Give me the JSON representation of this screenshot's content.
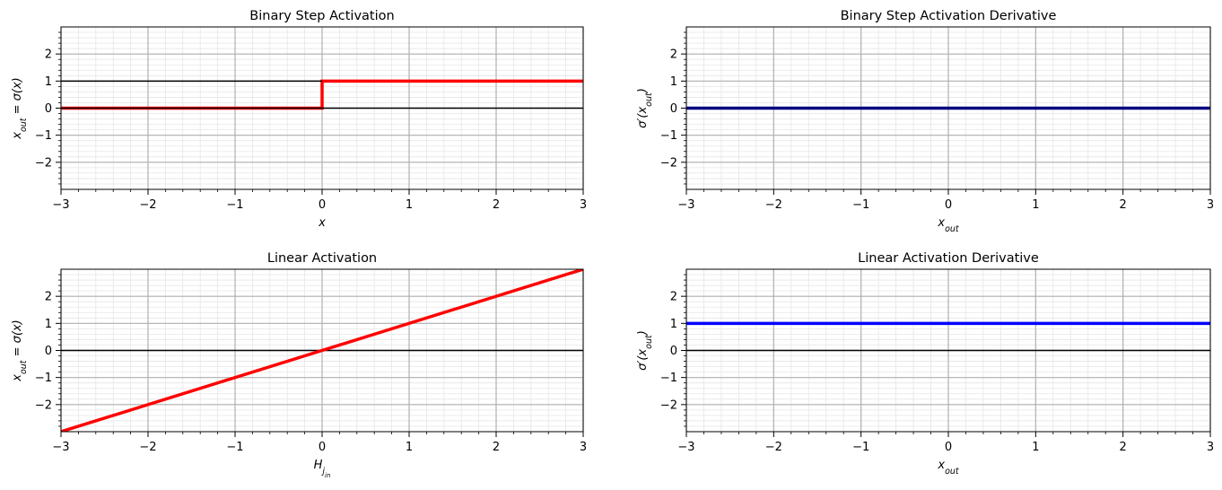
{
  "chart_data": [
    {
      "type": "line",
      "title": "Binary Step Activation",
      "xlabel": "x",
      "ylabel": "x_out = σ(x)",
      "xlim": [
        -3,
        3
      ],
      "ylim": [
        -3,
        3
      ],
      "xticks": [
        -3,
        -2,
        -1,
        0,
        1,
        2,
        3
      ],
      "yticks": [
        -2,
        -1,
        0,
        1,
        2
      ],
      "grid": true,
      "series": [
        {
          "x": [
            -3,
            0,
            0,
            3
          ],
          "y": [
            0,
            0,
            1,
            1
          ],
          "color": "#ff0000",
          "width": 3.5
        },
        {
          "x": [
            -3,
            3
          ],
          "y": [
            0,
            0
          ],
          "color": "#000000",
          "width": 1.5
        },
        {
          "x": [
            -3,
            0
          ],
          "y": [
            1,
            1
          ],
          "color": "#000000",
          "width": 1.5
        }
      ]
    },
    {
      "type": "line",
      "title": "Binary Step Activation Derivative",
      "xlabel": "x_out",
      "ylabel": "σ′(x_out)",
      "xlim": [
        -3,
        3
      ],
      "ylim": [
        -3,
        3
      ],
      "xticks": [
        -3,
        -2,
        -1,
        0,
        1,
        2,
        3
      ],
      "yticks": [
        -2,
        -1,
        0,
        1,
        2
      ],
      "grid": true,
      "series": [
        {
          "x": [
            -3,
            3
          ],
          "y": [
            0,
            0
          ],
          "color": "#00007f",
          "width": 3.5
        }
      ]
    },
    {
      "type": "line",
      "title": "Linear Activation",
      "xlabel": "H_j_in",
      "ylabel": "x_out = σ(x)",
      "xlim": [
        -3,
        3
      ],
      "ylim": [
        -3,
        3
      ],
      "xticks": [
        -3,
        -2,
        -1,
        0,
        1,
        2,
        3
      ],
      "yticks": [
        -2,
        -1,
        0,
        1,
        2
      ],
      "grid": true,
      "series": [
        {
          "x": [
            -3,
            3
          ],
          "y": [
            0,
            0
          ],
          "color": "#000000",
          "width": 1.5
        },
        {
          "x": [
            -3,
            3
          ],
          "y": [
            -3,
            3
          ],
          "color": "#ff0000",
          "width": 3.5
        }
      ]
    },
    {
      "type": "line",
      "title": "Linear Activation Derivative",
      "xlabel": "x_out",
      "ylabel": "σ′(x_out)",
      "xlim": [
        -3,
        3
      ],
      "ylim": [
        -3,
        3
      ],
      "xticks": [
        -3,
        -2,
        -1,
        0,
        1,
        2,
        3
      ],
      "yticks": [
        -2,
        -1,
        0,
        1,
        2
      ],
      "grid": true,
      "series": [
        {
          "x": [
            -3,
            3
          ],
          "y": [
            0,
            0
          ],
          "color": "#000000",
          "width": 1.5
        },
        {
          "x": [
            -3,
            3
          ],
          "y": [
            1,
            1
          ],
          "color": "#0000ff",
          "width": 3.5
        }
      ]
    }
  ]
}
